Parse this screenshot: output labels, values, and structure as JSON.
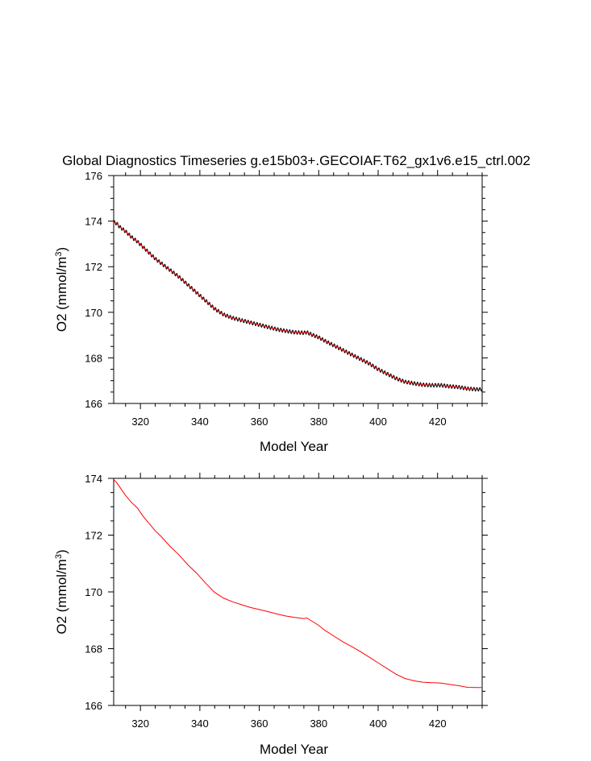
{
  "page_title": "Global Diagnostics Timeseries g.e15b03+.GECOIAF.T62_gx1v6.e15_ctrl.002",
  "chart_data": [
    {
      "type": "line",
      "title": "Global Diagnostics Timeseries g.e15b03+.GECOIAF.T62_gx1v6.e15_ctrl.002",
      "xlabel": "Model Year",
      "ylabel": "O2 (mmol/m3)",
      "ylabel_main": "O2 (mmol/m",
      "ylabel_sup": "3",
      "ylabel_close": ")",
      "xlim": [
        311,
        435
      ],
      "ylim": [
        166,
        176
      ],
      "xticks": [
        320,
        340,
        360,
        380,
        400,
        420
      ],
      "yticks": [
        166,
        168,
        170,
        172,
        174,
        176
      ],
      "grid": false,
      "seasonal_cycle_amplitude": 0.08,
      "series": [
        {
          "color": "#000000",
          "style": "monthly",
          "x": [
            311,
            312,
            313,
            315,
            317,
            319,
            321,
            323,
            325,
            327,
            330,
            333,
            336,
            339,
            342,
            345,
            348,
            351,
            354,
            357,
            360,
            363,
            366,
            369,
            372,
            375,
            376,
            378,
            380,
            382,
            385,
            388,
            391,
            394,
            397,
            400,
            403,
            406,
            409,
            412,
            415,
            418,
            421,
            424,
            427,
            430,
            433,
            435
          ],
          "y": [
            173.95,
            173.9,
            173.75,
            173.55,
            173.3,
            173.1,
            172.85,
            172.6,
            172.35,
            172.15,
            171.85,
            171.55,
            171.2,
            170.85,
            170.5,
            170.15,
            169.9,
            169.75,
            169.65,
            169.55,
            169.45,
            169.35,
            169.25,
            169.18,
            169.12,
            169.1,
            169.12,
            169.0,
            168.9,
            168.75,
            168.55,
            168.35,
            168.15,
            167.95,
            167.75,
            167.5,
            167.3,
            167.1,
            166.95,
            166.88,
            166.82,
            166.8,
            166.8,
            166.75,
            166.72,
            166.65,
            166.62,
            166.62
          ]
        },
        {
          "color": "#ff0000",
          "style": "annual",
          "x": [
            311,
            312,
            313,
            315,
            317,
            319,
            321,
            323,
            325,
            327,
            330,
            333,
            336,
            339,
            342,
            345,
            348,
            351,
            354,
            357,
            360,
            363,
            366,
            369,
            372,
            375,
            376,
            378,
            380,
            382,
            385,
            388,
            391,
            394,
            397,
            400,
            403,
            406,
            409,
            412,
            415,
            418,
            421,
            424,
            427,
            430,
            433,
            435
          ],
          "y": [
            173.95,
            173.9,
            173.75,
            173.55,
            173.3,
            173.1,
            172.85,
            172.6,
            172.35,
            172.15,
            171.85,
            171.55,
            171.2,
            170.85,
            170.5,
            170.15,
            169.9,
            169.75,
            169.65,
            169.55,
            169.45,
            169.35,
            169.25,
            169.18,
            169.12,
            169.1,
            169.12,
            169.0,
            168.9,
            168.75,
            168.55,
            168.35,
            168.15,
            167.95,
            167.75,
            167.5,
            167.3,
            167.1,
            166.95,
            166.88,
            166.82,
            166.8,
            166.8,
            166.75,
            166.72,
            166.65,
            166.62,
            166.62
          ]
        }
      ]
    },
    {
      "type": "line",
      "title": "",
      "xlabel": "Model Year",
      "ylabel": "O2 (mmol/m3)",
      "ylabel_main": "O2 (mmol/m",
      "ylabel_sup": "3",
      "ylabel_close": ")",
      "xlim": [
        311,
        435
      ],
      "ylim": [
        166,
        174
      ],
      "xticks": [
        320,
        340,
        360,
        380,
        400,
        420
      ],
      "yticks": [
        166,
        168,
        170,
        172,
        174
      ],
      "grid": false,
      "series": [
        {
          "color": "#ff0000",
          "style": "annual",
          "x": [
            311,
            312,
            313,
            315,
            317,
            319,
            321,
            323,
            325,
            327,
            330,
            333,
            336,
            339,
            342,
            345,
            348,
            351,
            354,
            357,
            360,
            363,
            366,
            369,
            372,
            375,
            376,
            378,
            380,
            382,
            385,
            388,
            391,
            394,
            397,
            400,
            403,
            406,
            409,
            412,
            415,
            418,
            421,
            424,
            427,
            430,
            433,
            435
          ],
          "y": [
            173.95,
            173.85,
            173.7,
            173.4,
            173.15,
            172.95,
            172.65,
            172.4,
            172.15,
            171.95,
            171.6,
            171.3,
            170.95,
            170.65,
            170.3,
            169.98,
            169.78,
            169.65,
            169.55,
            169.45,
            169.38,
            169.3,
            169.22,
            169.15,
            169.1,
            169.06,
            169.08,
            168.95,
            168.82,
            168.65,
            168.45,
            168.25,
            168.08,
            167.9,
            167.7,
            167.5,
            167.3,
            167.1,
            166.95,
            166.87,
            166.82,
            166.8,
            166.79,
            166.74,
            166.7,
            166.64,
            166.63,
            166.63
          ]
        }
      ]
    }
  ]
}
